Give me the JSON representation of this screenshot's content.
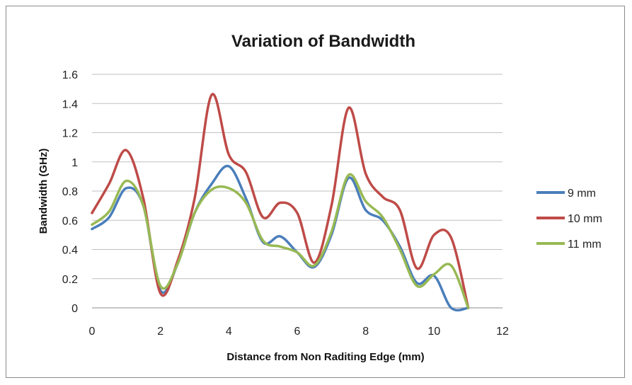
{
  "chart_data": {
    "type": "line",
    "title": "Variation of Bandwidth",
    "xlabel": "Distance from Non Raditing Edge (mm)",
    "ylabel": "Bandwidth (GHz)",
    "xlim": [
      0,
      12
    ],
    "ylim": [
      0,
      1.6
    ],
    "xticks": [
      "0",
      "2",
      "4",
      "6",
      "8",
      "10",
      "12"
    ],
    "yticks": [
      "0",
      "0.2",
      "0.4",
      "0.6",
      "0.8",
      "1",
      "1.2",
      "1.4",
      "1.6"
    ],
    "grid": "horizontal",
    "legend_position": "right",
    "x": [
      0,
      0.5,
      1,
      1.5,
      2,
      2.5,
      3,
      3.5,
      4,
      4.5,
      5,
      5.5,
      6,
      6.5,
      7,
      7.5,
      8,
      8.5,
      9,
      9.5,
      10,
      10.5,
      11
    ],
    "series": [
      {
        "name": "9 mm",
        "color": "#4a7ebb",
        "values": [
          0.54,
          0.62,
          0.82,
          0.7,
          0.12,
          0.3,
          0.65,
          0.85,
          0.97,
          0.75,
          0.45,
          0.49,
          0.38,
          0.28,
          0.5,
          0.89,
          0.67,
          0.6,
          0.42,
          0.17,
          0.22,
          0.0,
          0.0
        ]
      },
      {
        "name": "10 mm",
        "color": "#be4b48",
        "values": [
          0.65,
          0.85,
          1.08,
          0.75,
          0.1,
          0.32,
          0.75,
          1.46,
          1.05,
          0.93,
          0.62,
          0.72,
          0.65,
          0.31,
          0.7,
          1.37,
          0.92,
          0.76,
          0.67,
          0.27,
          0.5,
          0.48,
          0.0
        ]
      },
      {
        "name": "11 mm",
        "color": "#98b954",
        "values": [
          0.57,
          0.66,
          0.87,
          0.7,
          0.15,
          0.3,
          0.65,
          0.81,
          0.82,
          0.72,
          0.46,
          0.42,
          0.38,
          0.29,
          0.52,
          0.91,
          0.73,
          0.62,
          0.4,
          0.15,
          0.23,
          0.29,
          0.0
        ]
      }
    ]
  }
}
